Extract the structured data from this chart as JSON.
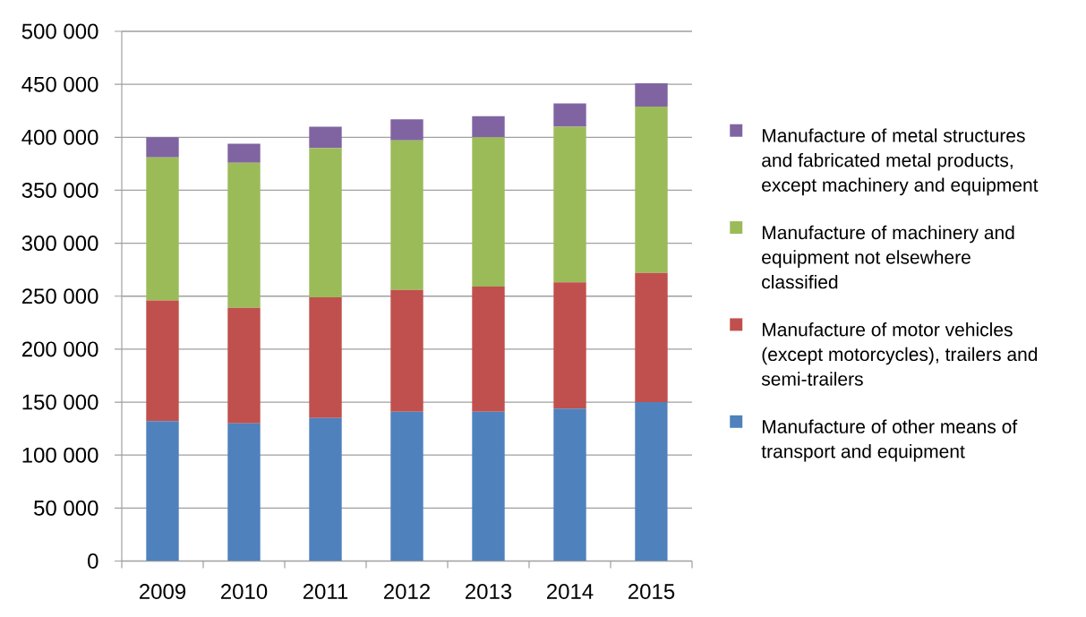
{
  "chart_data": {
    "type": "bar",
    "stacked": true,
    "categories": [
      "2009",
      "2010",
      "2011",
      "2012",
      "2013",
      "2014",
      "2015"
    ],
    "series": [
      {
        "name": "Manufacture of other means of transport and equipment",
        "color": "#4f81bd",
        "values": [
          132000,
          130000,
          135000,
          141000,
          141000,
          144000,
          150000
        ]
      },
      {
        "name": "Manufacture of motor vehicles (except motorcycles), trailers and semi-trailers",
        "color": "#c0504d",
        "values": [
          114000,
          109000,
          114000,
          115000,
          118000,
          119000,
          122000
        ]
      },
      {
        "name": "Manufacture of machinery and equipment not elsewhere classified",
        "color": "#9bbb59",
        "values": [
          135000,
          137000,
          141000,
          141000,
          141000,
          147000,
          157000
        ]
      },
      {
        "name": "Manufacture of metal structures and fabricated metal products, except machinery and equipment",
        "color": "#8064a2",
        "values": [
          19000,
          18000,
          20000,
          20000,
          20000,
          22000,
          22000
        ]
      }
    ],
    "ylim": [
      0,
      500000
    ],
    "yticks": [
      0,
      {
        "value": 50000,
        "label": "50 000"
      },
      {
        "value": 100000,
        "label": "100 000"
      },
      {
        "value": 150000,
        "label": "150 000"
      },
      {
        "value": 200000,
        "label": "200 000"
      },
      {
        "value": 250000,
        "label": "250 000"
      },
      {
        "value": 300000,
        "label": "300 000"
      },
      {
        "value": 350000,
        "label": "350 000"
      },
      {
        "value": 400000,
        "label": "400 000"
      },
      {
        "value": 450000,
        "label": "450 000"
      },
      {
        "value": 500000,
        "label": "500 000"
      }
    ],
    "grid": "y",
    "legend": "right"
  }
}
